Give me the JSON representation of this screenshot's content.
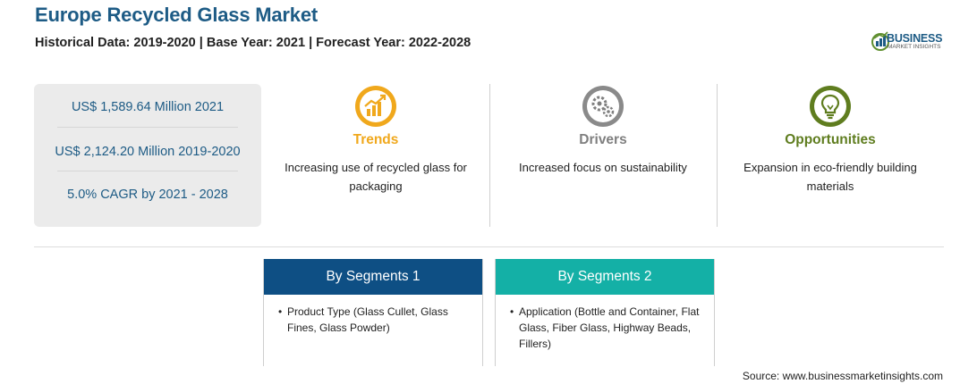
{
  "header": {
    "title": "Europe Recycled Glass Market",
    "subtitle": "Historical Data: 2019-2020 | Base Year: 2021 | Forecast Year: 2022-2028"
  },
  "logo": {
    "line1": "BUSINESS",
    "line2": "MARKET INSIGHTS",
    "color": "#1d5b85"
  },
  "stats": [
    "US$ 1,589.64 Million 2021",
    "US$ 2,124.20 Million 2019-2020",
    "5.0% CAGR by 2021 - 2028"
  ],
  "columns": [
    {
      "icon": "trend-chart-icon",
      "title": "Trends",
      "color": "#f0a81c",
      "desc": "Increasing use of recycled glass for packaging"
    },
    {
      "icon": "gears-icon",
      "title": "Drivers",
      "color": "#7f7f7f",
      "desc": "Increased focus on sustainability"
    },
    {
      "icon": "lightbulb-icon",
      "title": "Opportunities",
      "color": "#5f7d1f",
      "desc": "Expansion in eco-friendly building materials"
    }
  ],
  "segments": [
    {
      "title": "By Segments 1",
      "color": "#0e4f84",
      "items": [
        "Product Type (Glass Cullet, Glass Fines, Glass Powder)"
      ]
    },
    {
      "title": "By Segments 2",
      "color": "#14b0a6",
      "items": [
        "Application (Bottle and Container, Flat Glass, Fiber Glass, Highway Beads, Fillers)"
      ]
    }
  ],
  "source": "Source: www.businessmarketinsights.com"
}
